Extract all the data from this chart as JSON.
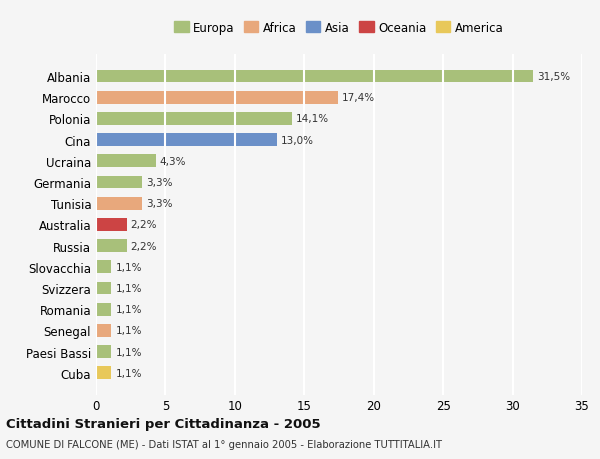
{
  "countries": [
    "Albania",
    "Marocco",
    "Polonia",
    "Cina",
    "Ucraina",
    "Germania",
    "Tunisia",
    "Australia",
    "Russia",
    "Slovacchia",
    "Svizzera",
    "Romania",
    "Senegal",
    "Paesi Bassi",
    "Cuba"
  ],
  "values": [
    31.5,
    17.4,
    14.1,
    13.0,
    4.3,
    3.3,
    3.3,
    2.2,
    2.2,
    1.1,
    1.1,
    1.1,
    1.1,
    1.1,
    1.1
  ],
  "labels": [
    "31,5%",
    "17,4%",
    "14,1%",
    "13,0%",
    "4,3%",
    "3,3%",
    "3,3%",
    "2,2%",
    "2,2%",
    "1,1%",
    "1,1%",
    "1,1%",
    "1,1%",
    "1,1%",
    "1,1%"
  ],
  "continents": [
    "Europa",
    "Africa",
    "Europa",
    "Asia",
    "Europa",
    "Europa",
    "Africa",
    "Oceania",
    "Europa",
    "Europa",
    "Europa",
    "Europa",
    "Africa",
    "Europa",
    "America"
  ],
  "continent_colors": {
    "Europa": "#a8c07a",
    "Africa": "#e8a87c",
    "Asia": "#6b90c8",
    "Oceania": "#cc4444",
    "America": "#e8c85a"
  },
  "legend_order": [
    "Europa",
    "Africa",
    "Asia",
    "Oceania",
    "America"
  ],
  "legend_colors": {
    "Europa": "#a8c07a",
    "Africa": "#e8a87c",
    "Asia": "#6b90c8",
    "Oceania": "#cc4444",
    "America": "#e8c85a"
  },
  "title": "Cittadini Stranieri per Cittadinanza - 2005",
  "subtitle": "COMUNE DI FALCONE (ME) - Dati ISTAT al 1° gennaio 2005 - Elaborazione TUTTITALIA.IT",
  "xlim": [
    0,
    35
  ],
  "xticks": [
    0,
    5,
    10,
    15,
    20,
    25,
    30,
    35
  ],
  "background_color": "#f5f5f5",
  "grid_color": "#ffffff",
  "bar_height": 0.6
}
